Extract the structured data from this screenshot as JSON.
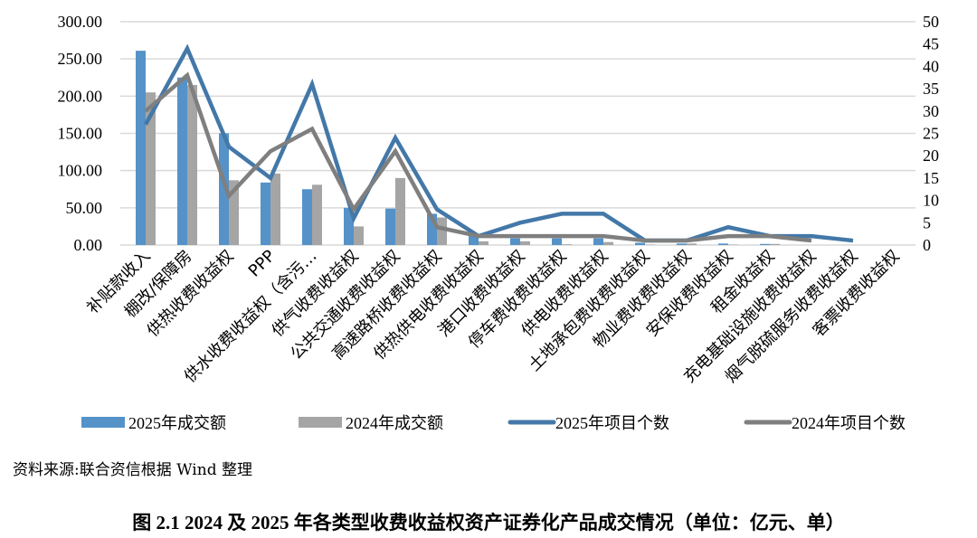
{
  "chart_data": {
    "type": "bar",
    "title": "图 2.1   2024 及 2025 年各类型收费收益权资产证券化产品成交情况（单位：亿元、单）",
    "source": "资料来源:联合资信根据 Wind 整理",
    "categories": [
      "补贴款收入",
      "棚改/保障房",
      "供热收费收益权",
      "PPP",
      "供水收费收益权（含污…",
      "供气收费收益权",
      "公共交通收费收益权",
      "高速路桥收费收益权",
      "供热供电收费收益权",
      "港口收费收益权",
      "停车费收费收益权",
      "供电收费收益权",
      "土地承包费收费收益权",
      "物业费收费收益权",
      "安保收费收益权",
      "租金收益权",
      "充电基础设施收费收益权",
      "烟气脱硫服务收费收益权",
      "客票收费收益权"
    ],
    "left_axis": {
      "ylim": [
        0,
        300
      ],
      "ticks": [
        "0.00",
        "50.00",
        "100.00",
        "150.00",
        "200.00",
        "250.00",
        "300.00"
      ]
    },
    "right_axis": {
      "ylim": [
        0,
        50
      ],
      "ticks": [
        "0",
        "5",
        "10",
        "15",
        "20",
        "25",
        "30",
        "35",
        "40",
        "45",
        "50"
      ]
    },
    "grid": true,
    "legend_position": "bottom",
    "series": [
      {
        "name": "2025年成交额",
        "kind": "bar",
        "axis": "left",
        "color": "#5592C8",
        "values": [
          261,
          225,
          150,
          84,
          75,
          50,
          49,
          42,
          12,
          9,
          9,
          9,
          3,
          2,
          2,
          1.5,
          0,
          0,
          0
        ]
      },
      {
        "name": "2024年成交额",
        "kind": "bar",
        "axis": "left",
        "color": "#A5A5A5",
        "values": [
          205,
          215,
          87,
          96,
          81,
          25,
          90,
          37,
          5,
          5,
          1,
          4,
          0.5,
          2,
          0.5,
          1.5,
          0,
          0,
          0
        ]
      },
      {
        "name": "2025年项目个数",
        "kind": "line",
        "axis": "right",
        "color": "#4378A8",
        "values": [
          27,
          44,
          22,
          15,
          36,
          6,
          24,
          8,
          2,
          5,
          7,
          7,
          1,
          1,
          4,
          2,
          2,
          1,
          null
        ]
      },
      {
        "name": "2024年项目个数",
        "kind": "line",
        "axis": "right",
        "color": "#7F7F7F",
        "values": [
          30,
          38,
          11,
          21,
          26,
          8,
          21,
          4,
          2,
          2,
          2,
          2,
          1,
          1,
          2,
          2,
          1,
          null,
          null
        ]
      }
    ]
  }
}
